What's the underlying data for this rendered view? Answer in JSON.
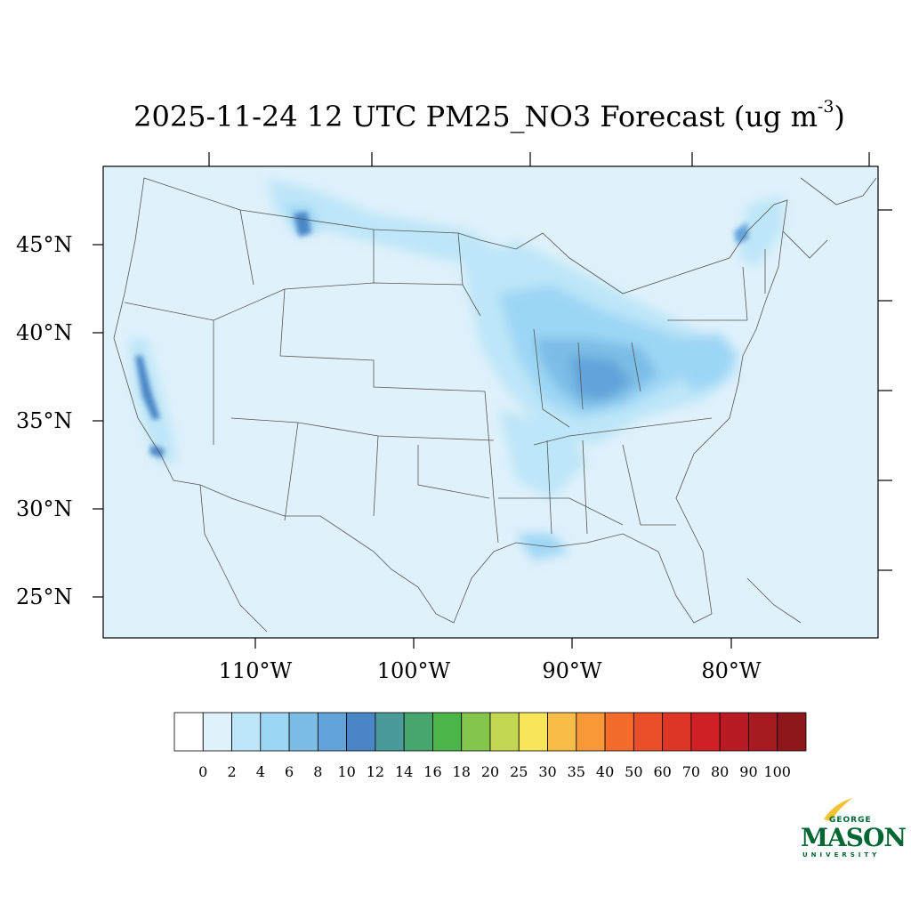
{
  "title": {
    "main": "2025-11-24 12 UTC PM25_NO3 Forecast (ug m",
    "superscript": "-3",
    "close": ")"
  },
  "map": {
    "lat_labels": [
      "45°N",
      "40°N",
      "35°N",
      "30°N",
      "25°N"
    ],
    "lon_labels": [
      "110°W",
      "100°W",
      "90°W",
      "80°W"
    ],
    "background_color": "#dff1fb"
  },
  "colorbar": {
    "labels": [
      "0",
      "2",
      "4",
      "6",
      "8",
      "10",
      "12",
      "14",
      "16",
      "18",
      "20",
      "25",
      "30",
      "35",
      "40",
      "50",
      "60",
      "70",
      "80",
      "90",
      "100"
    ],
    "colors": [
      "#ffffff",
      "#dff1fb",
      "#bde6f8",
      "#9dd6f5",
      "#7cbde6",
      "#62a3da",
      "#4a86c6",
      "#4a9a9c",
      "#47a56e",
      "#4bb54a",
      "#84c54c",
      "#c4d752",
      "#f7e65a",
      "#f9bd47",
      "#f89838",
      "#f46c2b",
      "#ea4f2a",
      "#df3526",
      "#cf2026",
      "#b81b24",
      "#a61a21",
      "#8d171b"
    ]
  },
  "logo": {
    "line1": "GEORGE",
    "line2": "MASON",
    "line3": "UNIVERSITY",
    "color": "#006633",
    "accent": "#f2c230"
  }
}
